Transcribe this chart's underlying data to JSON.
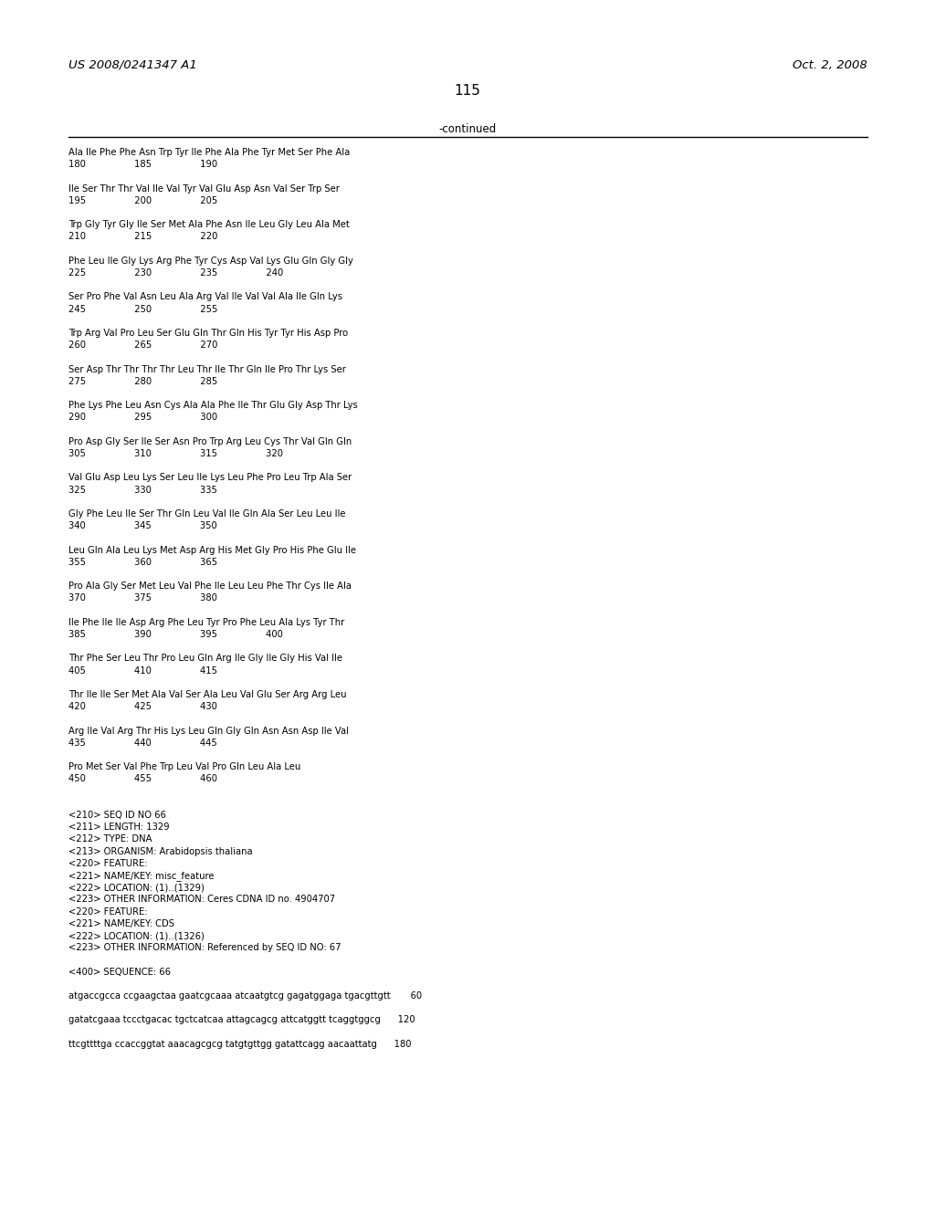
{
  "left_header": "US 2008/0241347 A1",
  "right_header": "Oct. 2, 2008",
  "page_number": "115",
  "continued_label": "-continued",
  "bg_color": "#ffffff",
  "text_color": "#000000",
  "content_lines": [
    "Ala Ile Phe Phe Asn Trp Tyr Ile Phe Ala Phe Tyr Met Ser Phe Ala",
    "180                 185                 190",
    "",
    "Ile Ser Thr Thr Val Ile Val Tyr Val Glu Asp Asn Val Ser Trp Ser",
    "195                 200                 205",
    "",
    "Trp Gly Tyr Gly Ile Ser Met Ala Phe Asn Ile Leu Gly Leu Ala Met",
    "210                 215                 220",
    "",
    "Phe Leu Ile Gly Lys Arg Phe Tyr Cys Asp Val Lys Glu Gln Gly Gly",
    "225                 230                 235                 240",
    "",
    "Ser Pro Phe Val Asn Leu Ala Arg Val Ile Val Val Ala Ile Gln Lys",
    "245                 250                 255",
    "",
    "Trp Arg Val Pro Leu Ser Glu Gln Thr Gln His Tyr Tyr His Asp Pro",
    "260                 265                 270",
    "",
    "Ser Asp Thr Thr Thr Thr Leu Thr Ile Thr Gln Ile Pro Thr Lys Ser",
    "275                 280                 285",
    "",
    "Phe Lys Phe Leu Asn Cys Ala Ala Phe Ile Thr Glu Gly Asp Thr Lys",
    "290                 295                 300",
    "",
    "Pro Asp Gly Ser Ile Ser Asn Pro Trp Arg Leu Cys Thr Val Gln Gln",
    "305                 310                 315                 320",
    "",
    "Val Glu Asp Leu Lys Ser Leu Ile Lys Leu Phe Pro Leu Trp Ala Ser",
    "325                 330                 335",
    "",
    "Gly Phe Leu Ile Ser Thr Gln Leu Val Ile Gln Ala Ser Leu Leu Ile",
    "340                 345                 350",
    "",
    "Leu Gln Ala Leu Lys Met Asp Arg His Met Gly Pro His Phe Glu Ile",
    "355                 360                 365",
    "",
    "Pro Ala Gly Ser Met Leu Val Phe Ile Leu Leu Phe Thr Cys Ile Ala",
    "370                 375                 380",
    "",
    "Ile Phe Ile Ile Asp Arg Phe Leu Tyr Pro Phe Leu Ala Lys Tyr Thr",
    "385                 390                 395                 400",
    "",
    "Thr Phe Ser Leu Thr Pro Leu Gln Arg Ile Gly Ile Gly His Val Ile",
    "405                 410                 415",
    "",
    "Thr Ile Ile Ser Met Ala Val Ser Ala Leu Val Glu Ser Arg Arg Leu",
    "420                 425                 430",
    "",
    "Arg Ile Val Arg Thr His Lys Leu Gln Gly Gln Asn Asn Asp Ile Val",
    "435                 440                 445",
    "",
    "Pro Met Ser Val Phe Trp Leu Val Pro Gln Leu Ala Leu",
    "450                 455                 460",
    "",
    "",
    "<210> SEQ ID NO 66",
    "<211> LENGTH: 1329",
    "<212> TYPE: DNA",
    "<213> ORGANISM: Arabidopsis thaliana",
    "<220> FEATURE:",
    "<221> NAME/KEY: misc_feature",
    "<222> LOCATION: (1)..(1329)",
    "<223> OTHER INFORMATION: Ceres CDNA ID no. 4904707",
    "<220> FEATURE:",
    "<221> NAME/KEY: CDS",
    "<222> LOCATION: (1)..(1326)",
    "<223> OTHER INFORMATION: Referenced by SEQ ID NO: 67",
    "",
    "<400> SEQUENCE: 66",
    "",
    "atgaccgcca ccgaagctaa gaatcgcaaa atcaatgtcg gagatggaga tgacgttgtt       60",
    "",
    "gatatcgaaa tccctgacac tgctcatcaa attagcagcg attcatggtt tcaggtggcg      120",
    "",
    "ttcgttttga ccaccggtat aaacagcgcg tatgtgttgg gatattcagg aacaattatg      180"
  ]
}
